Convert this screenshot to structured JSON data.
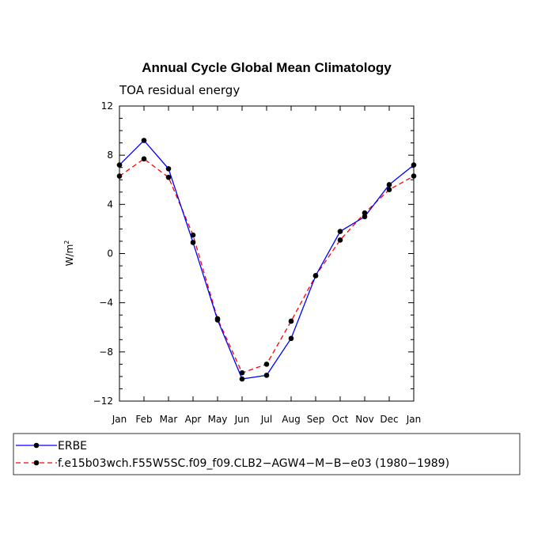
{
  "chart_data": {
    "type": "line",
    "title": "Annual Cycle Global Mean Climatology",
    "subtitle": "TOA residual energy",
    "xlabel": "",
    "ylabel": "W/m",
    "ylabel_superscript": "2",
    "categories": [
      "Jan",
      "Feb",
      "Mar",
      "Apr",
      "May",
      "Jun",
      "Jul",
      "Aug",
      "Sep",
      "Oct",
      "Nov",
      "Dec",
      "Jan"
    ],
    "ylim": [
      -12,
      12
    ],
    "yticks": [
      12,
      8,
      4,
      0,
      -4,
      -8,
      -12
    ],
    "ytick_labels": [
      "12",
      "8",
      "4",
      "0",
      "−4",
      "−8",
      "−12"
    ],
    "series": [
      {
        "name": "ERBE",
        "color": "#0000ff",
        "dash": "solid",
        "values": [
          7.2,
          9.2,
          6.9,
          0.9,
          -5.4,
          -10.2,
          -9.9,
          -6.9,
          -1.8,
          1.8,
          3.0,
          5.6,
          7.2
        ]
      },
      {
        "name": "f.e15b03wch.F55W5SC.f09_f09.CLB2−AGW4−M−B−e03 (1980−1989)",
        "color": "#ff0000",
        "dash": "dashed",
        "values": [
          6.3,
          7.7,
          6.2,
          1.5,
          -5.3,
          -9.7,
          -9.0,
          -5.5,
          -1.8,
          1.1,
          3.3,
          5.2,
          6.3
        ]
      }
    ],
    "legend": "bottom-left"
  }
}
